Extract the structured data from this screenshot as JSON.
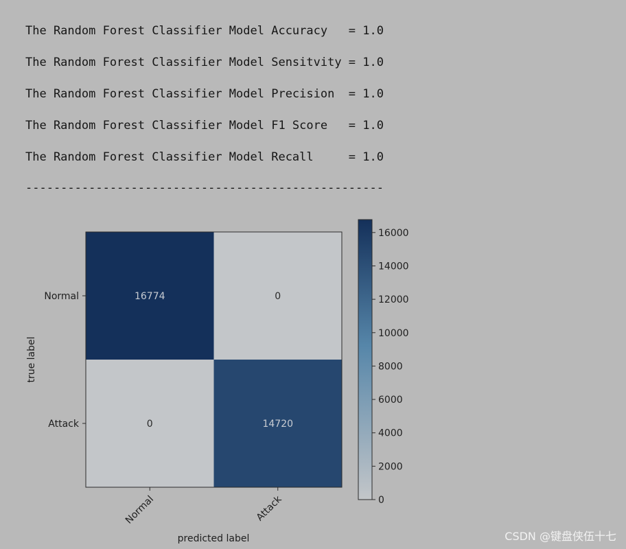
{
  "output": {
    "separator_top": "---------------------------------------------------",
    "lines": [
      "The Random Forest Classifier Model Accuracy   = 1.0",
      "The Random Forest Classifier Model Sensitvity = 1.0",
      "The Random Forest Classifier Model Precision  = 1.0",
      "The Random Forest Classifier Model F1 Score   = 1.0",
      "The Random Forest Classifier Model Recall     = 1.0"
    ],
    "separator_bottom": "---------------------------------------------------"
  },
  "chart_data": {
    "type": "heatmap",
    "title": "",
    "xlabel": "predicted label",
    "ylabel": "true label",
    "x_categories": [
      "Normal",
      "Attack"
    ],
    "y_categories": [
      "Normal",
      "Attack"
    ],
    "matrix": [
      [
        16774,
        0
      ],
      [
        0,
        14720
      ]
    ],
    "cell_labels": [
      [
        "16774",
        "0"
      ],
      [
        "0",
        "14720"
      ]
    ],
    "colorbar": {
      "ticks": [
        0,
        2000,
        4000,
        6000,
        8000,
        10000,
        12000,
        14000,
        16000
      ],
      "tick_labels": [
        "0",
        "2000",
        "4000",
        "6000",
        "8000",
        "10000",
        "12000",
        "14000",
        "16000"
      ],
      "range": [
        0,
        16774
      ],
      "colors": {
        "low": "#c3c6c9",
        "mid": "#5686a9",
        "high": "#14305a"
      }
    },
    "grid": false,
    "colormap": "Blues"
  },
  "watermark": "CSDN @键盘侠伍十七"
}
